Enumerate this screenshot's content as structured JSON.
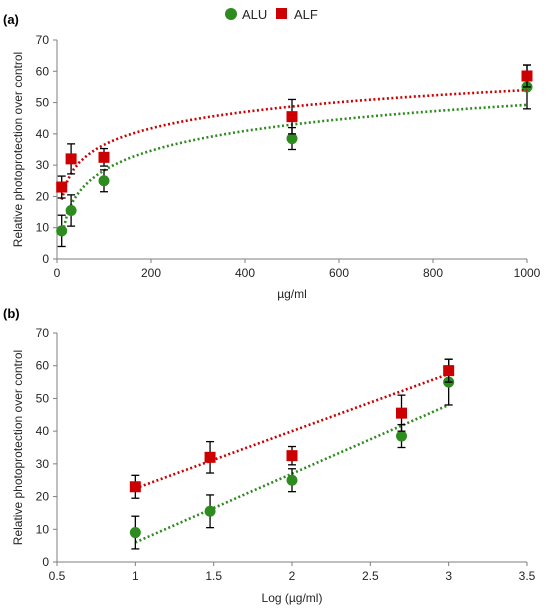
{
  "legend": {
    "items": [
      {
        "label": "ALU",
        "color": "#2e8b1f",
        "marker": "circle"
      },
      {
        "label": "ALF",
        "color": "#cc0000",
        "marker": "square"
      }
    ]
  },
  "chart_data": [
    {
      "type": "scatter",
      "panel_label": "(a)",
      "xlabel": "µg/ml",
      "ylabel": "Relative  photoprotection over control",
      "xlim": [
        0,
        1000
      ],
      "ylim": [
        0,
        70
      ],
      "xticks": [
        0,
        200,
        400,
        600,
        800,
        1000
      ],
      "yticks": [
        0,
        10,
        20,
        30,
        40,
        50,
        60,
        70
      ],
      "grid": false,
      "legend_position": "top-center",
      "series": [
        {
          "name": "ALU",
          "color": "#2e8b1f",
          "marker": "circle",
          "x": [
            10,
            30,
            100,
            500,
            1000
          ],
          "y": [
            9,
            15.5,
            25,
            38.5,
            55
          ],
          "err": [
            5,
            5,
            3.5,
            3.5,
            7
          ],
          "trendline": {
            "type": "logarithmic",
            "a": 9.1,
            "b": -13.6
          }
        },
        {
          "name": "ALF",
          "color": "#cc0000",
          "marker": "square",
          "x": [
            10,
            30,
            100,
            500,
            1000
          ],
          "y": [
            23,
            32,
            32.5,
            45.5,
            58.5
          ],
          "err": [
            3.5,
            4.8,
            2.8,
            5.5,
            3.5
          ],
          "trendline": {
            "type": "logarithmic",
            "a": 7.6,
            "b": 1.5
          }
        }
      ]
    },
    {
      "type": "scatter",
      "panel_label": "(b)",
      "xlabel": "Log (µg/ml)",
      "ylabel": "Relative  photoprotection over control",
      "xlim": [
        0.5,
        3.5
      ],
      "ylim": [
        0,
        70
      ],
      "xticks": [
        0.5,
        1,
        1.5,
        2,
        2.5,
        3,
        3.5
      ],
      "yticks": [
        0,
        10,
        20,
        30,
        40,
        50,
        60,
        70
      ],
      "grid": false,
      "series": [
        {
          "name": "ALU",
          "color": "#2e8b1f",
          "marker": "circle",
          "x": [
            1,
            1.477,
            2,
            2.699,
            3
          ],
          "y": [
            9,
            15.5,
            25,
            38.5,
            55
          ],
          "err": [
            5,
            5,
            3.5,
            3.5,
            7
          ],
          "trendline": {
            "type": "linear",
            "slope": 21,
            "intercept": -15
          }
        },
        {
          "name": "ALF",
          "color": "#cc0000",
          "marker": "square",
          "x": [
            1,
            1.477,
            2,
            2.699,
            3
          ],
          "y": [
            23,
            32,
            32.5,
            45.5,
            58.5
          ],
          "err": [
            3.5,
            4.8,
            2.8,
            5.5,
            3.5
          ],
          "trendline": {
            "type": "linear",
            "slope": 17.5,
            "intercept": 5
          }
        }
      ]
    }
  ]
}
